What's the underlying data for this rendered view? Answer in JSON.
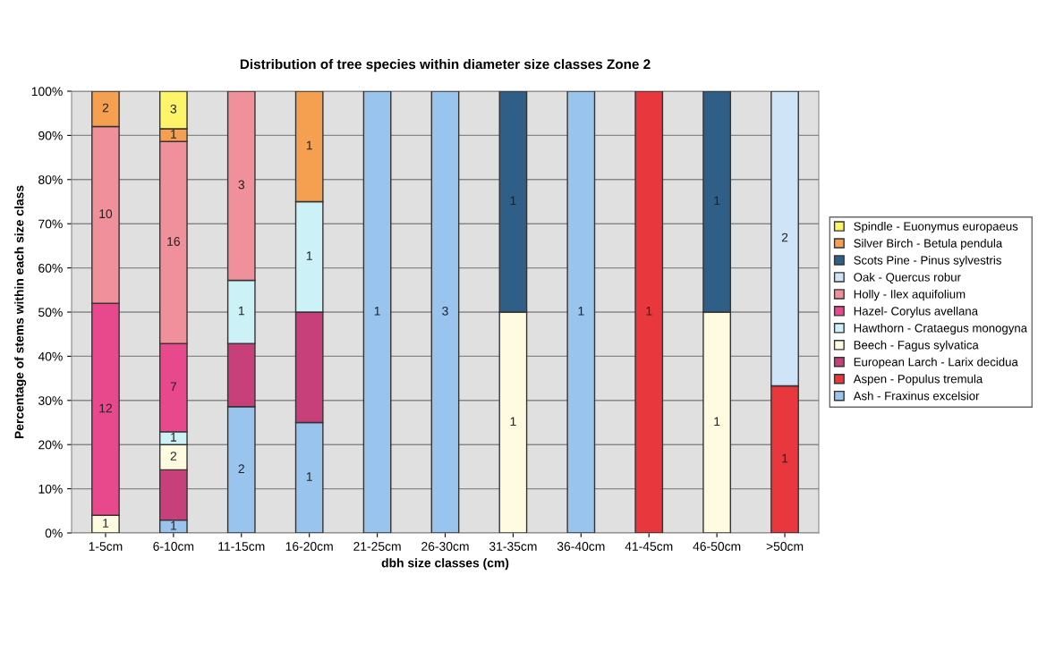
{
  "chart_data": {
    "type": "bar",
    "stacked": true,
    "title": "Distribution of tree species within diameter size classes Zone 2",
    "xlabel": "dbh size classes (cm)",
    "ylabel": "Percentage of stems within each size class",
    "categories": [
      "1-5cm",
      "6-10cm",
      "11-15cm",
      "16-20cm",
      "21-25cm",
      "26-30cm",
      "31-35cm",
      "36-40cm",
      "41-45cm",
      "46-50cm",
      ">50cm"
    ],
    "series": [
      {
        "name": "Ash - Fraxinus excelsior",
        "color": "#99c4ee",
        "values": [
          null,
          2.9,
          28.6,
          25,
          100,
          100,
          null,
          100,
          null,
          null,
          null
        ]
      },
      {
        "name": "Aspen - Populus tremula",
        "color": "#e8383d",
        "values": [
          null,
          null,
          null,
          null,
          null,
          null,
          null,
          null,
          100,
          null,
          33.3
        ]
      },
      {
        "name": "European Larch - Larix decidua",
        "color": "#c8407a",
        "values": [
          null,
          11.4,
          14.3,
          25,
          null,
          null,
          null,
          null,
          null,
          null,
          null
        ],
        "value_labels": [
          null,
          null,
          null,
          null,
          null,
          null,
          null,
          null,
          null,
          null,
          null
        ]
      },
      {
        "name": "Beech - Fagus sylvatica",
        "color": "#fffbe0",
        "values": [
          4,
          5.7,
          null,
          null,
          null,
          null,
          50,
          null,
          null,
          50,
          null
        ]
      },
      {
        "name": "Hawthorn - Crataegus monogyna",
        "color": "#ccf2f8",
        "values": [
          null,
          2.9,
          14.3,
          25,
          null,
          null,
          null,
          null,
          null,
          null,
          null
        ]
      },
      {
        "name": "Hazel- Corylus avellana",
        "color": "#e8488c",
        "values": [
          48,
          20,
          null,
          null,
          null,
          null,
          null,
          null,
          null,
          null,
          null
        ]
      },
      {
        "name": "Holly - Ilex aquifolium",
        "color": "#f0909a",
        "values": [
          40,
          45.7,
          42.8,
          null,
          null,
          null,
          null,
          null,
          null,
          null,
          null
        ]
      },
      {
        "name": "Oak - Quercus robur",
        "color": "#d0e4f7",
        "values": [
          null,
          null,
          null,
          null,
          null,
          null,
          null,
          null,
          null,
          null,
          66.7
        ]
      },
      {
        "name": "Scots Pine - Pinus sylvestris",
        "color": "#2f5f87",
        "values": [
          null,
          null,
          null,
          null,
          null,
          null,
          50,
          null,
          null,
          50,
          null
        ]
      },
      {
        "name": "Silver Birch - Betula pendula",
        "color": "#f5a050",
        "values": [
          8,
          2.9,
          null,
          25,
          null,
          null,
          null,
          null,
          null,
          null,
          null
        ]
      },
      {
        "name": "Spindle - Euonymus europaeus",
        "color": "#fdf46a",
        "values": [
          null,
          8.5,
          null,
          null,
          null,
          null,
          null,
          null,
          null,
          null,
          null
        ]
      }
    ],
    "annotations": [
      "1",
      "12",
      "10",
      "2",
      "1",
      "2",
      "1",
      "7",
      "16",
      "1",
      "3",
      "2",
      "1",
      "3",
      "1",
      "1",
      "1",
      "1",
      "3",
      "1",
      "1",
      "1",
      "1",
      "1",
      "1",
      "1",
      "2"
    ],
    "ylim": [
      0,
      100
    ],
    "yticks": [
      {
        "value": 0,
        "label": "0%"
      },
      {
        "value": 10,
        "label": "10%"
      },
      {
        "value": 20,
        "label": "20%"
      },
      {
        "value": 30,
        "label": "30%"
      },
      {
        "value": 40,
        "label": "40%"
      },
      {
        "value": 50,
        "label": "50%"
      },
      {
        "value": 60,
        "label": "60%"
      },
      {
        "value": 70,
        "label": "70%"
      },
      {
        "value": 80,
        "label": "80%"
      },
      {
        "value": 90,
        "label": "90%"
      },
      {
        "value": 100,
        "label": "100%"
      }
    ],
    "grid": "y",
    "legend": "right"
  }
}
